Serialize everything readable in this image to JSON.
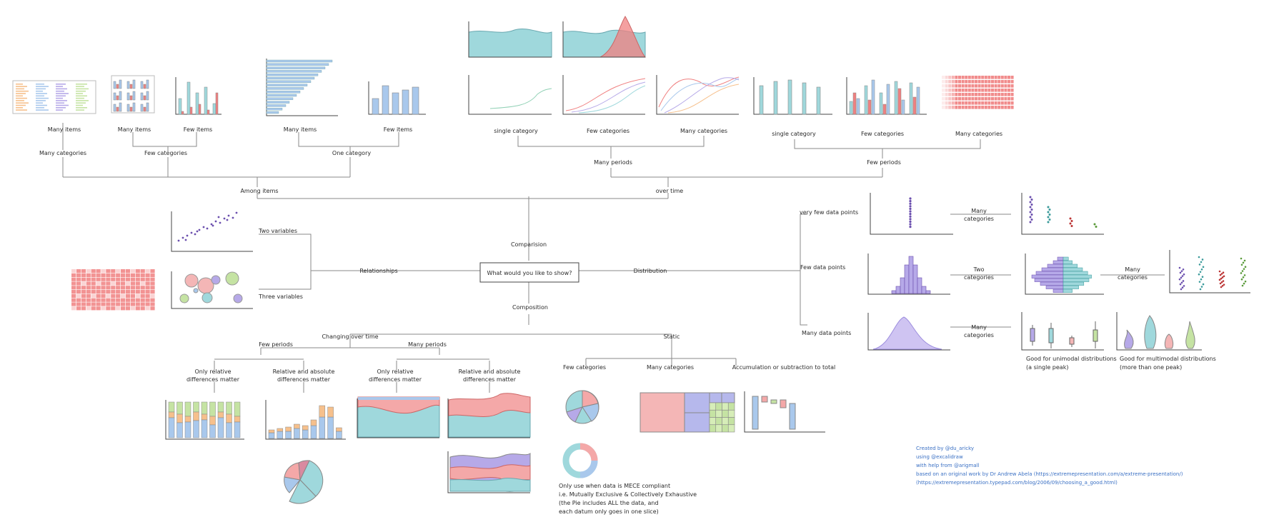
{
  "root": "What would you like to show?",
  "branches": {
    "comparison": "Comparision",
    "relationships": "Relationships",
    "distribution": "Distribution",
    "composition": "Composition"
  },
  "comparison": {
    "among_items": "Among items",
    "over_time": "over time",
    "many_categories": "Many categories",
    "few_categories": "Few categories",
    "one_category": "One category",
    "many_items_a": "Many items",
    "many_items_b": "Many items",
    "few_items_a": "Few items",
    "many_items_c": "Many items",
    "few_items_b": "Few items",
    "many_periods": "Many periods",
    "few_periods": "Few periods",
    "single_category_a": "single category",
    "few_categories_a": "Few categories",
    "many_categories_a": "Many categories",
    "single_category_b": "single category",
    "few_categories_b": "Few categories",
    "many_categories_b": "Many categories"
  },
  "relationships": {
    "two_variables": "Two variables",
    "three_variables": "Three variables"
  },
  "distribution": {
    "very_few": "very few data points",
    "few": "Few data points",
    "many": "Many data points",
    "many_categories_1": [
      "Many",
      "categories"
    ],
    "two_categories": [
      "Two",
      "categories"
    ],
    "many_categories_2": [
      "Many",
      "categories"
    ],
    "many_categories_3": [
      "Many",
      "categories"
    ],
    "unimodal": [
      "Good for unimodal distributions",
      "(a single peak)"
    ],
    "multimodal": [
      "Good for multimodal distributions",
      "(more than one peak)"
    ]
  },
  "composition": {
    "changing_over_time": "Changing over time",
    "static": "Static",
    "few_periods": "Few periods",
    "many_periods": "Many periods",
    "only_relative_a": [
      "Only relative",
      "differences matter"
    ],
    "relative_absolute_a": [
      "Relative and absolute",
      "differences matter"
    ],
    "only_relative_b": [
      "Only relative",
      "differences matter"
    ],
    "relative_absolute_b": [
      "Relative and absolute",
      "differences matter"
    ],
    "few_categories": "Few categories",
    "many_categories": "Many categories",
    "accumulation": "Accumulation or subtraction to total",
    "mece_note": [
      "Only use when data is MECE compliant",
      "i.e. Mutually Exclusive & Collectively Exhaustive",
      "(the Pie includes ALL the data, and",
      "each datum only goes in one slice)"
    ]
  },
  "credits": [
    "Created by @du_aricky",
    "using @excalidraw",
    "with help from @arigmall",
    "based on an original work by Dr Andrew Abela (https://extremepresentation.com/a/extreme-presentation/)",
    "(https://extremepresentation.typepad.com/blog/2006/09/choosing_a_good.html)"
  ],
  "colors": {
    "blue": "#a9c8ec",
    "teal": "#9fd8dc",
    "red": "#f08080",
    "pink": "#f4b6b6",
    "purple": "#b6a9e8",
    "green": "#c5e3a3",
    "orange": "#f6c08c",
    "ink": "#2a2a2a",
    "credit": "#3a70c4"
  }
}
